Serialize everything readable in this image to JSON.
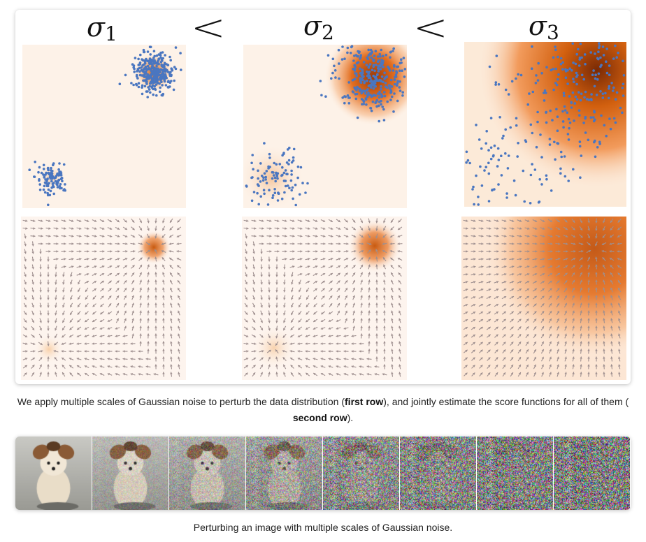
{
  "figure": {
    "sigma_labels": [
      {
        "symbol": "σ",
        "subscript": "1"
      },
      {
        "symbol": "σ",
        "subscript": "2"
      },
      {
        "symbol": "σ",
        "subscript": "3"
      }
    ],
    "comparators": [
      "<",
      "<"
    ],
    "rows": [
      "perturbed-densities-with-samples",
      "score-vector-fields"
    ],
    "colors": {
      "density_low": "#fdf2e8",
      "density_high": "#c85a10",
      "density_peak": "#7a2a05",
      "sample_points": "#4a76c0",
      "arrows": "#9e8f8f"
    }
  },
  "caption1": {
    "part1": "We apply multiple scales of Gaussian noise to perturb the data distribution (",
    "bold1": "first row",
    "part2": "), and jointly estimate the score functions for all of them (",
    "bold2": "second row",
    "part3": ")."
  },
  "noise_strip": {
    "tiles": 8,
    "subject": "photo of a small long-haired dog progressively covered by noise",
    "noise_levels": [
      0.0,
      0.2,
      0.35,
      0.55,
      0.75,
      0.85,
      0.92,
      0.97
    ]
  },
  "caption2": {
    "text": "Perturbing an image with multiple scales of Gaussian noise."
  }
}
